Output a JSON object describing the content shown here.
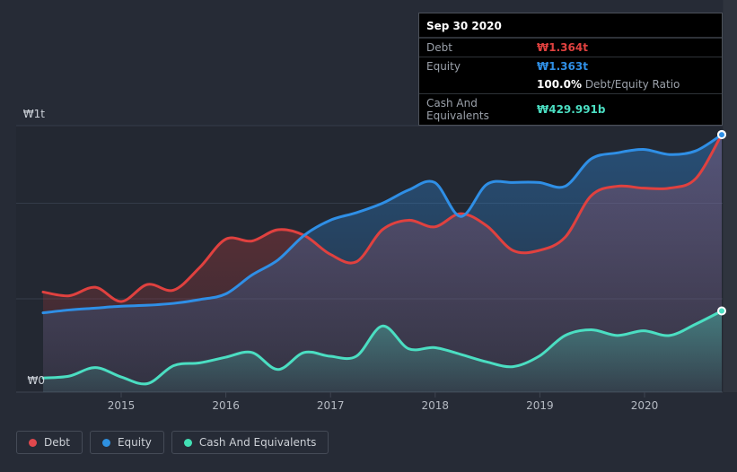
{
  "tooltip": {
    "date": "Sep 30 2020",
    "debt_label": "Debt",
    "debt_value": "₩1.364t",
    "equity_label": "Equity",
    "equity_value": "₩1.363t",
    "ratio_value": "100.0%",
    "ratio_label": "Debt/Equity Ratio",
    "cash_label": "Cash And Equivalents",
    "cash_value": "₩429.991b"
  },
  "colors": {
    "debt": "#e0413f",
    "equity": "#2f8fe6",
    "cash": "#4bdec2",
    "grid": "#343b49",
    "axis": "#3f4552",
    "tick_text": "#b5bac2"
  },
  "legend": {
    "items": [
      {
        "label": "Debt",
        "color": "#e0484d"
      },
      {
        "label": "Equity",
        "color": "#2e90e0"
      },
      {
        "label": "Cash And Equivalents",
        "color": "#42dfb4"
      }
    ]
  },
  "chart_data": {
    "type": "area",
    "unit": "KRW trillion",
    "x": [
      2014.25,
      2014.5,
      2014.75,
      2015.0,
      2015.25,
      2015.5,
      2015.75,
      2016.0,
      2016.25,
      2016.5,
      2016.75,
      2017.0,
      2017.25,
      2017.5,
      2017.75,
      2018.0,
      2018.25,
      2018.5,
      2018.75,
      2019.0,
      2019.25,
      2019.5,
      2019.75,
      2020.0,
      2020.25,
      2020.5,
      2020.75
    ],
    "series": [
      {
        "name": "Debt",
        "color": "#e0413f",
        "values": [
          0.53,
          0.51,
          0.555,
          0.48,
          0.57,
          0.54,
          0.66,
          0.81,
          0.8,
          0.86,
          0.83,
          0.73,
          0.69,
          0.86,
          0.91,
          0.875,
          0.945,
          0.88,
          0.75,
          0.75,
          0.82,
          1.04,
          1.09,
          1.08,
          1.08,
          1.13,
          1.364
        ]
      },
      {
        "name": "Equity",
        "color": "#2f8fe6",
        "values": [
          0.42,
          0.435,
          0.445,
          0.455,
          0.46,
          0.47,
          0.49,
          0.52,
          0.62,
          0.7,
          0.83,
          0.91,
          0.95,
          1.0,
          1.07,
          1.11,
          0.93,
          1.1,
          1.11,
          1.11,
          1.09,
          1.235,
          1.267,
          1.285,
          1.258,
          1.277,
          1.363
        ]
      },
      {
        "name": "Cash And Equivalents",
        "color": "#4bdec2",
        "values": [
          0.075,
          0.085,
          0.13,
          0.08,
          0.045,
          0.14,
          0.155,
          0.185,
          0.21,
          0.12,
          0.21,
          0.19,
          0.19,
          0.35,
          0.23,
          0.236,
          0.2,
          0.16,
          0.135,
          0.19,
          0.3,
          0.33,
          0.3,
          0.325,
          0.3,
          0.36,
          0.43
        ]
      }
    ],
    "last_point": {
      "date": "Sep 30 2020",
      "debt": 1.364,
      "equity": 1.363,
      "cash": 0.429991
    },
    "y_ticks": [
      "₩1t",
      "₩0"
    ],
    "x_ticks": [
      "2015",
      "2016",
      "2017",
      "2018",
      "2019",
      "2020"
    ],
    "ylim": [
      0,
      1.41
    ],
    "grid": true,
    "legend_position": "bottom-left"
  }
}
